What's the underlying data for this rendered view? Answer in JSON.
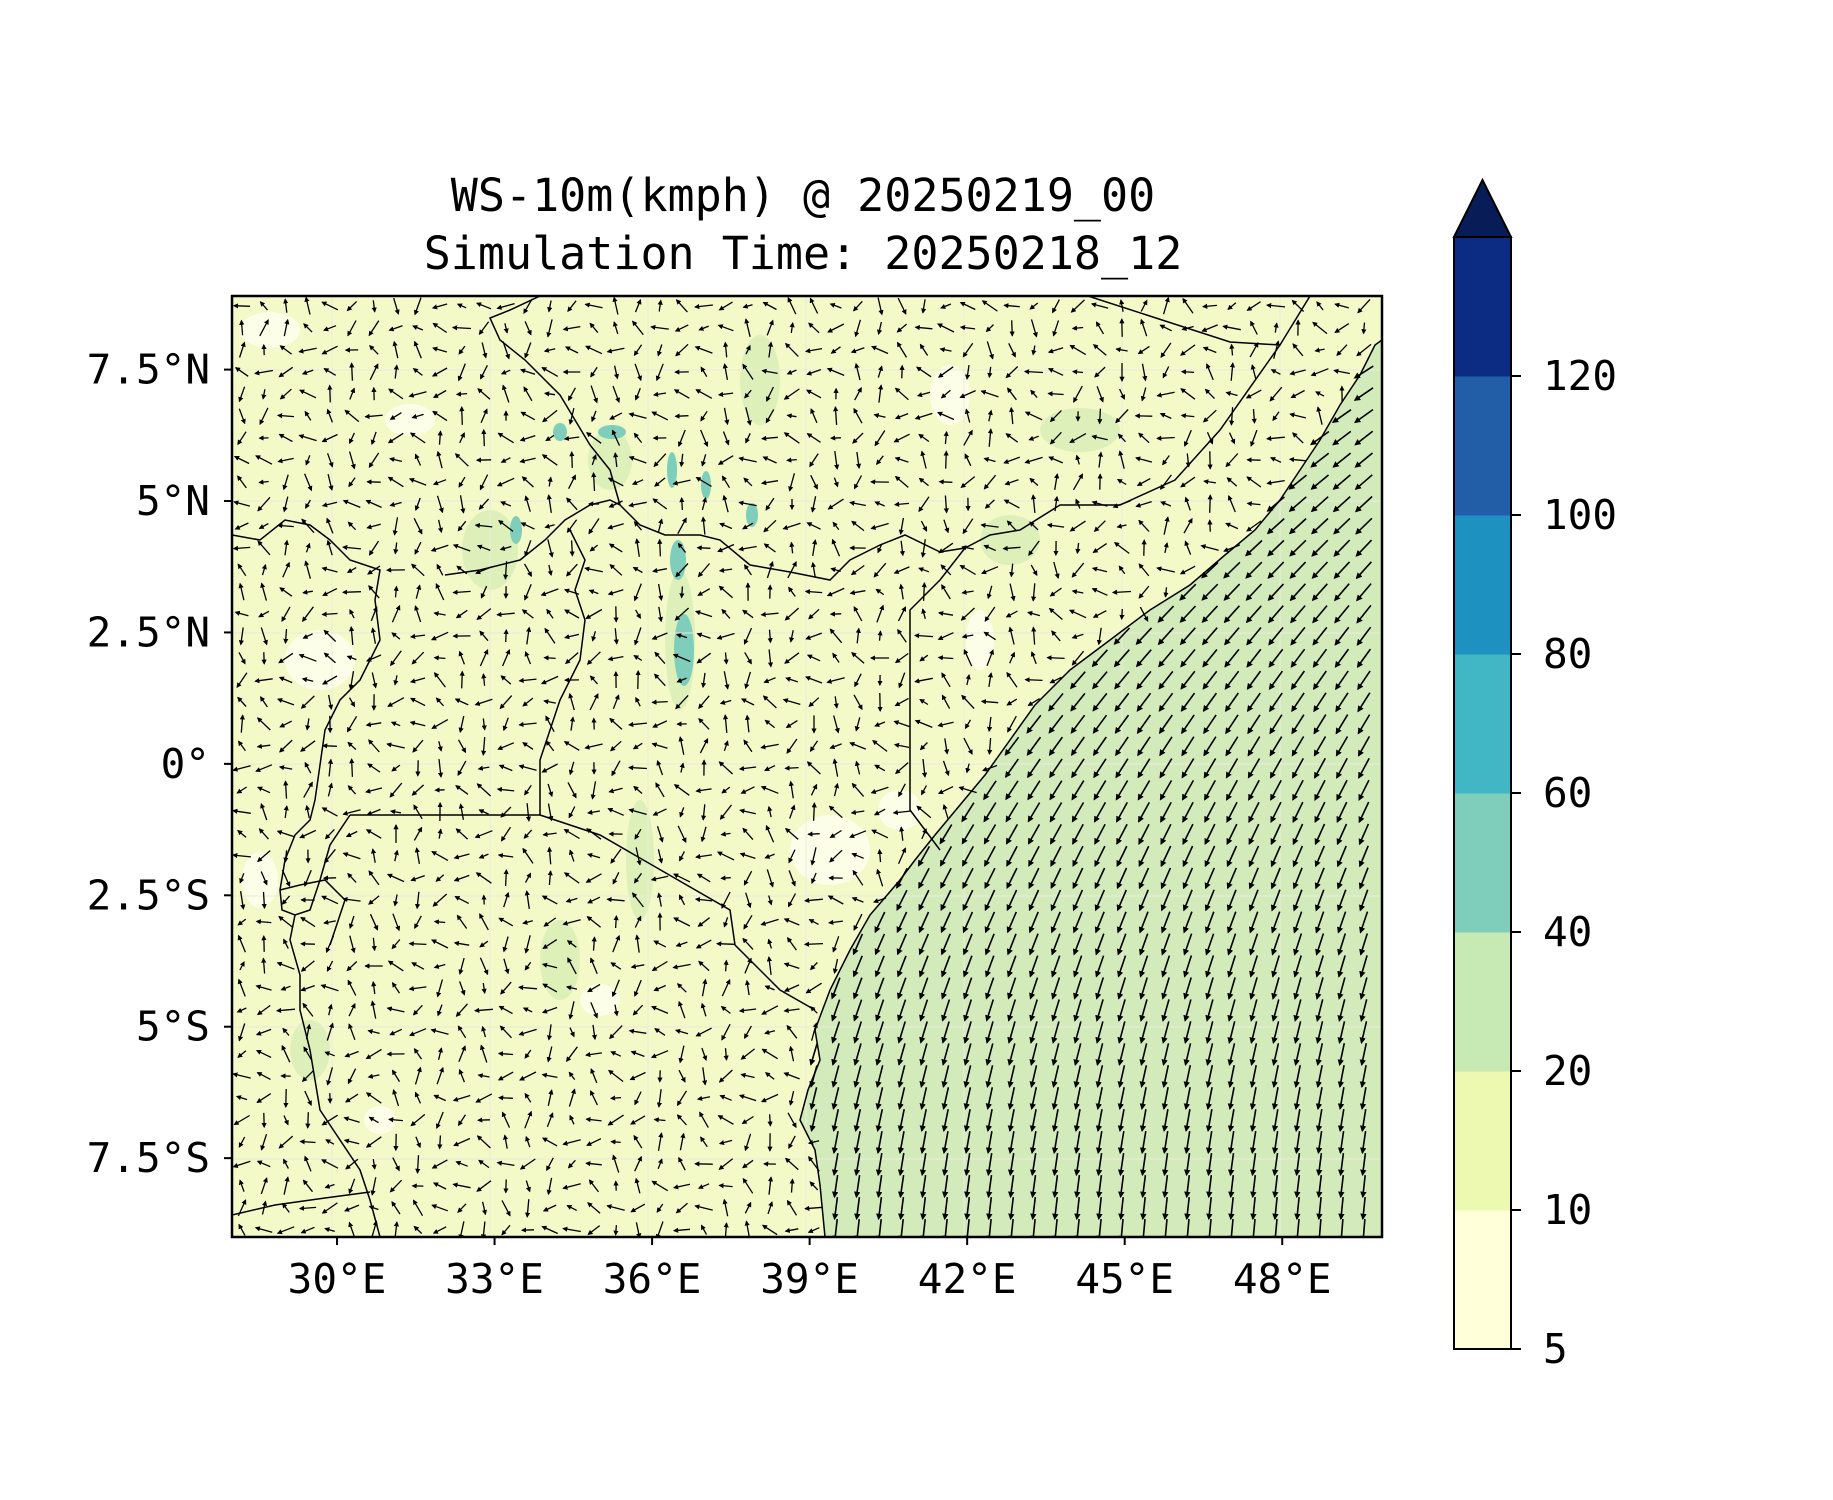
{
  "map": {
    "title_line1": "WS-10m(kmph) @ 20250219_00",
    "title_line2": "Simulation Time: 20250218_12",
    "x_ticks": [
      "30°E",
      "33°E",
      "36°E",
      "39°E",
      "42°E",
      "45°E",
      "48°E"
    ],
    "x_tick_values": [
      30,
      33,
      36,
      39,
      42,
      45,
      48
    ],
    "y_ticks": [
      "7.5°N",
      "5°N",
      "2.5°N",
      "0°",
      "2.5°S",
      "5°S",
      "7.5°S"
    ],
    "y_tick_values": [
      7.5,
      5,
      2.5,
      0,
      -2.5,
      -5,
      -7.5
    ],
    "extent": {
      "lon": [
        28.0,
        49.9
      ],
      "lat": [
        -9.0,
        8.9
      ]
    },
    "colorbar": {
      "labels": [
        "5",
        "10",
        "20",
        "40",
        "60",
        "80",
        "100",
        "120"
      ],
      "levels": [
        5,
        10,
        20,
        40,
        60,
        80,
        100,
        120
      ],
      "colors": [
        "#ffffd9",
        "#edf8b1",
        "#c7e9b4",
        "#7fcdbb",
        "#41b6c4",
        "#1d91c0",
        "#225ea8",
        "#0c2c84"
      ],
      "extend_color": "#081d58",
      "extend": "max"
    }
  }
}
